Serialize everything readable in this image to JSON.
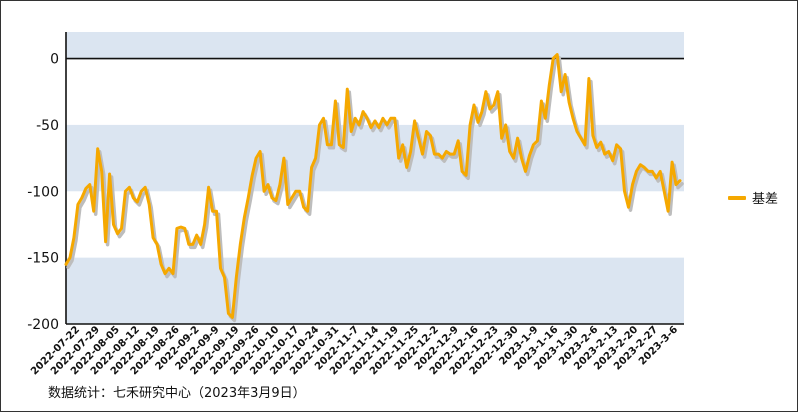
{
  "chart_data": {
    "type": "line",
    "title": "",
    "xlabel": "",
    "ylabel": "",
    "ylim": [
      -200,
      20
    ],
    "yticks": [
      0,
      -50,
      -100,
      -150,
      -200
    ],
    "xtick_labels": [
      "2022-07-22",
      "2022-07-29",
      "2022-08-05",
      "2022-08-12",
      "2022-08-19",
      "2022-08-26",
      "2022-09-2",
      "2022-09-9",
      "2022-09-19",
      "2022-09-26",
      "2022-10-10",
      "2022-10-17",
      "2022-10-24",
      "2022-10-31",
      "2022-11-7",
      "2022-11-14",
      "2022-11-19",
      "2022-11-25",
      "2022-12-2",
      "2022-12-9",
      "2022-12-16",
      "2022-12-23",
      "2022-12-30",
      "2023-1-9",
      "2023-1-16",
      "2023-1-30",
      "2023-2-6",
      "2023-2-13",
      "2023-2-20",
      "2023-2-27",
      "2023-3-6"
    ],
    "grid_bands": "alternating horizontal bands, light blue",
    "legend_position": "right",
    "series": [
      {
        "name": "基差",
        "color": "#f5a800",
        "values": [
          -155,
          -150,
          -135,
          -110,
          -105,
          -98,
          -95,
          -115,
          -68,
          -85,
          -138,
          -87,
          -125,
          -132,
          -128,
          -100,
          -97,
          -105,
          -108,
          -100,
          -97,
          -110,
          -135,
          -140,
          -155,
          -162,
          -158,
          -162,
          -128,
          -127,
          -128,
          -140,
          -140,
          -133,
          -140,
          -125,
          -97,
          -115,
          -115,
          -158,
          -165,
          -192,
          -195,
          -165,
          -140,
          -120,
          -105,
          -88,
          -75,
          -70,
          -100,
          -95,
          -105,
          -107,
          -95,
          -75,
          -110,
          -105,
          -100,
          -100,
          -112,
          -115,
          -82,
          -75,
          -50,
          -45,
          -65,
          -65,
          -32,
          -65,
          -67,
          -23,
          -55,
          -45,
          -50,
          -40,
          -45,
          -52,
          -47,
          -52,
          -45,
          -50,
          -45,
          -45,
          -75,
          -65,
          -82,
          -70,
          -47,
          -60,
          -72,
          -55,
          -58,
          -72,
          -72,
          -75,
          -70,
          -72,
          -72,
          -62,
          -85,
          -88,
          -50,
          -35,
          -48,
          -40,
          -25,
          -38,
          -35,
          -25,
          -60,
          -50,
          -70,
          -75,
          -60,
          -75,
          -85,
          -73,
          -65,
          -62,
          -32,
          -45,
          -20,
          0,
          3,
          -25,
          -12,
          -33,
          -45,
          -55,
          -60,
          -65,
          -15,
          -58,
          -67,
          -63,
          -72,
          -70,
          -77,
          -65,
          -68,
          -100,
          -112,
          -95,
          -85,
          -80,
          -82,
          -85,
          -85,
          -90,
          -85,
          -100,
          -115,
          -78,
          -95,
          -92
        ]
      }
    ],
    "source_note": "数据统计：七禾研究中心（2023年3月9日）"
  }
}
